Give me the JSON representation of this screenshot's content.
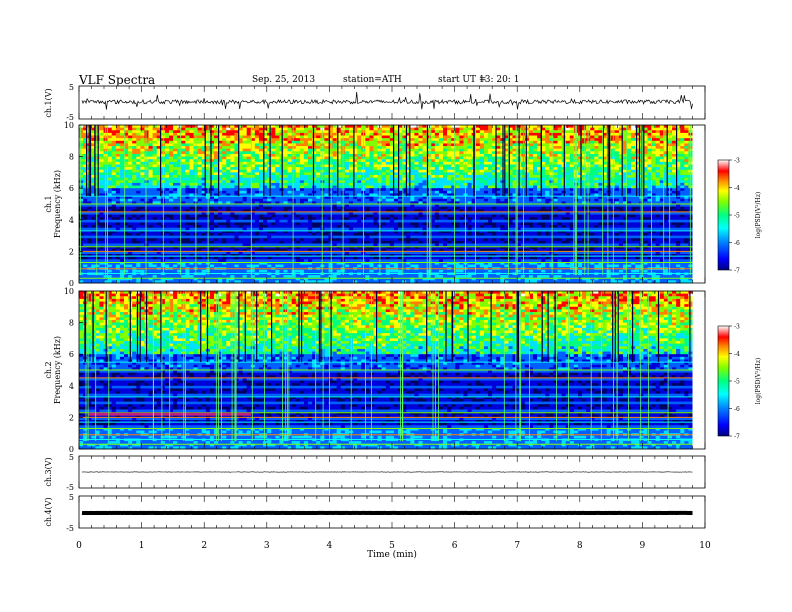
{
  "header": {
    "title": "VLF  Spectra",
    "date": "Sep. 25, 2013",
    "station": "station=ATH",
    "start_label": "start  UT  =",
    "start_value": "13: 20: 1"
  },
  "chart_data": [
    {
      "type": "line",
      "panel": "ch1_waveform",
      "ylabel": "ch.1(V)",
      "yticks": [
        "5",
        "-5"
      ],
      "ylim": [
        -5,
        5
      ],
      "x_range_min": [
        0,
        9.8
      ],
      "description_free": true,
      "series": [
        {
          "values_level": 0.2
        }
      ]
    },
    {
      "type": "heatmap",
      "panel": "ch1_spectrogram",
      "ylabel": "ch.1\nFrequency (kHz)",
      "ylabel_channel": "ch.1",
      "ylabel_freq": "Frequency (kHz)",
      "yticks": [
        "0",
        "2",
        "4",
        "6",
        "8",
        "10"
      ],
      "ylim_khz": [
        0,
        10
      ],
      "xlim_min": [
        0,
        9.8
      ],
      "colorbar": {
        "label": "log(PSD(V²/Hz)",
        "ticks": [
          "-3",
          "-4",
          "-5",
          "-6",
          "-7"
        ],
        "range": [
          -7,
          -3
        ]
      }
    },
    {
      "type": "heatmap",
      "panel": "ch2_spectrogram",
      "ylabel_channel": "ch.2",
      "ylabel_freq": "Frequency (kHz)",
      "yticks": [
        "0",
        "2",
        "4",
        "6",
        "8",
        "10"
      ],
      "ylim_khz": [
        0,
        10
      ],
      "xlim_min": [
        0,
        9.8
      ],
      "colorbar": {
        "label": "log(PSD(V²/Hz)",
        "ticks": [
          "-3",
          "-4",
          "-5",
          "-6",
          "-7"
        ],
        "range": [
          -7,
          -3
        ]
      }
    },
    {
      "type": "line",
      "panel": "ch3_waveform",
      "ylabel": "ch.3(V)",
      "yticks": [
        "5",
        "-5"
      ],
      "ylim": [
        -5,
        5
      ],
      "series": [
        {
          "values_level": 0
        }
      ]
    },
    {
      "type": "line",
      "panel": "ch4_waveform",
      "ylabel": "ch.4(V)",
      "yticks": [
        "5",
        "-5"
      ],
      "ylim": [
        -5,
        5
      ],
      "series": [
        {
          "values_level": -0.3
        }
      ]
    }
  ],
  "xaxis": {
    "label": "Time  (min)",
    "ticks": [
      "0",
      "1",
      "2",
      "3",
      "4",
      "5",
      "6",
      "7",
      "8",
      "9",
      "10"
    ],
    "xlim": [
      0,
      10
    ]
  },
  "colors": {
    "colormap": [
      "#000080",
      "#0000ff",
      "#00a0ff",
      "#00ffff",
      "#00ff80",
      "#80ff00",
      "#ffff00",
      "#ff8000",
      "#ff0000",
      "#ffffff"
    ]
  }
}
